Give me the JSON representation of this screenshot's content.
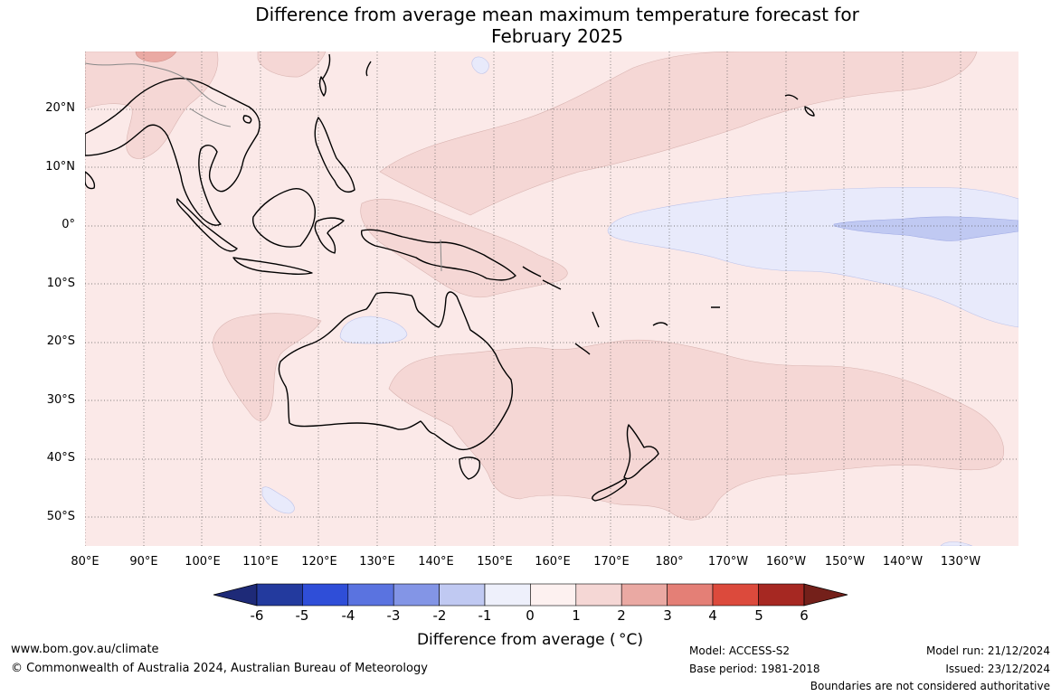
{
  "title": {
    "line1": "Difference from average mean maximum temperature forecast for",
    "line2": "February 2025"
  },
  "map": {
    "region": "Australia, Maritime Continent and western-central Pacific",
    "lat_ticks": [
      "20°N",
      "10°N",
      "0°",
      "10°S",
      "20°S",
      "30°S",
      "40°S",
      "50°S"
    ],
    "lon_ticks": [
      "80°E",
      "90°E",
      "100°E",
      "110°E",
      "120°E",
      "130°E",
      "140°E",
      "150°E",
      "160°E",
      "170°E",
      "180°",
      "170°W",
      "160°W",
      "150°W",
      "140°W",
      "130°W"
    ],
    "background_anomaly": "0 to 1",
    "regions": [
      {
        "name": "warm-band-northwest-pacific",
        "anomaly": "1 to 2"
      },
      {
        "name": "warm-band-papua-new-guinea",
        "anomaly": "1 to 2"
      },
      {
        "name": "warm-area-southern-pacific-tasman",
        "anomaly": "1 to 2"
      },
      {
        "name": "warm-area-western-australia-ocean",
        "anomaly": "1 to 2"
      },
      {
        "name": "warm-area-southeast-asia",
        "anomaly": "1 to 2"
      },
      {
        "name": "warm-spot-himalaya",
        "anomaly": "2 to 3"
      },
      {
        "name": "cool-tongue-equatorial-pacific",
        "anomaly": "-1 to 0"
      },
      {
        "name": "cool-core-equatorial-pacific",
        "anomaly": "-2 to -1"
      },
      {
        "name": "cool-patch-northern-australia",
        "anomaly": "-1 to 0"
      },
      {
        "name": "cool-patch-southern-indian-ocean",
        "anomaly": "-1 to 0"
      }
    ]
  },
  "colorbar": {
    "ticks": [
      "-6",
      "-5",
      "-4",
      "-3",
      "-2",
      "-1",
      "0",
      "1",
      "2",
      "3",
      "4",
      "5",
      "6"
    ],
    "colors": [
      "#233a9e",
      "#2f4ed8",
      "#5a73e0",
      "#8395e6",
      "#c0c9f2",
      "#eef0fb",
      "#fdf1f0",
      "#f5d7d5",
      "#eaa9a3",
      "#e47f76",
      "#dc4a3c",
      "#a62822"
    ],
    "under_color": "#1e2a78",
    "over_color": "#74201a",
    "label": "Difference from average ( °C)"
  },
  "footer": {
    "website": "www.bom.gov.au/climate",
    "copyright": "© Commonwealth of Australia 2024, Australian Bureau of Meteorology",
    "model": "Model: ACCESS-S2",
    "base_period": "Base period: 1981-2018",
    "model_run": "Model run: 21/12/2024",
    "issued": "Issued: 23/12/2024",
    "disclaimer": "Boundaries are not considered authoritative"
  }
}
